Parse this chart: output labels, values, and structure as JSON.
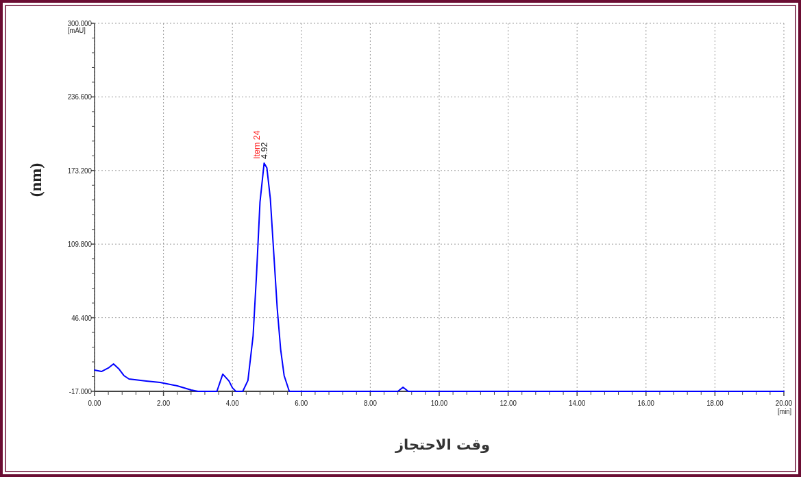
{
  "chart_data": {
    "type": "line",
    "xlabel": "وقت الاحتجاز",
    "ylabel": "(nm)",
    "annotations": [
      {
        "text": "Item 24",
        "x": 4.92,
        "y": 179.6
      },
      {
        "text": "4.92",
        "x": 4.92,
        "y": 179.6
      },
      "[mAU]",
      "[min]"
    ],
    "series": [
      {
        "color": "#0000ff",
        "x": [
          0,
          0.2,
          0.4,
          0.55,
          0.7,
          0.85,
          1.0,
          1.5,
          1.9,
          2.0,
          2.4,
          2.8,
          3.0,
          3.55,
          3.72,
          3.9,
          4.0,
          4.1,
          4.3,
          4.45,
          4.6,
          4.7,
          4.8,
          4.92,
          5.0,
          5.1,
          5.2,
          5.3,
          5.4,
          5.5,
          5.65,
          8.8,
          8.95,
          9.1,
          20
        ],
        "values": [
          1.3,
          0.1,
          3.1,
          6.6,
          2.5,
          -3.4,
          -6.4,
          -8.1,
          -9.3,
          -9.9,
          -12.3,
          -15.8,
          -17,
          -17,
          -2.2,
          -8.1,
          -14,
          -17,
          -17,
          -7.6,
          30.8,
          84,
          146,
          179.6,
          175.4,
          148.9,
          101.7,
          54.4,
          19,
          -3.4,
          -17,
          -17,
          -13.5,
          -17,
          -17
        ]
      }
    ],
    "xlim": [
      0,
      20
    ],
    "ylim": [
      -17,
      300
    ],
    "xticks": [
      {
        "value": 0,
        "label": "0.00"
      },
      {
        "value": 2,
        "label": "2.00"
      },
      {
        "value": 4,
        "label": "4.00"
      },
      {
        "value": 6,
        "label": "6.00"
      },
      {
        "value": 8,
        "label": "8.00"
      },
      {
        "value": 10,
        "label": "10.00"
      },
      {
        "value": 12,
        "label": "12.00"
      },
      {
        "value": 14,
        "label": "14.00"
      },
      {
        "value": 16,
        "label": "16.00"
      },
      {
        "value": 18,
        "label": "18.00"
      },
      {
        "value": 20,
        "label": "20.00"
      }
    ],
    "yticks": [
      {
        "value": -17,
        "label": "-17.000"
      },
      {
        "value": 46.4,
        "label": "46.400"
      },
      {
        "value": 109.8,
        "label": "109.800"
      },
      {
        "value": 173.2,
        "label": "173.200"
      },
      {
        "value": 236.6,
        "label": "236.600"
      },
      {
        "value": 300,
        "label": "300.000"
      }
    ],
    "grid": true,
    "line_style": "solid"
  }
}
